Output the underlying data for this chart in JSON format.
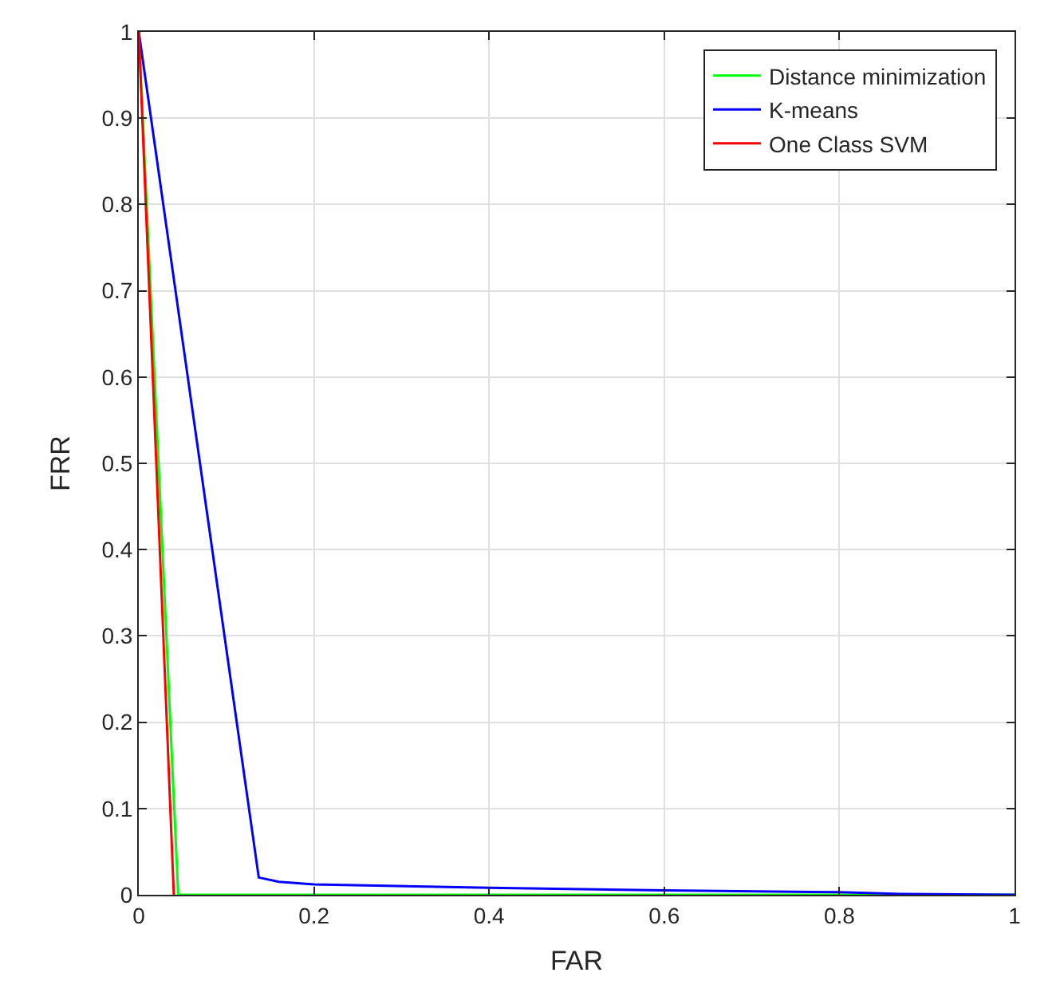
{
  "chart_data": {
    "type": "line",
    "xlabel": "FAR",
    "ylabel": "FRR",
    "xlim": [
      0,
      1
    ],
    "xticks": [
      0,
      0.2,
      0.4,
      0.6,
      0.8,
      1
    ],
    "ylim": [
      0,
      1
    ],
    "yticks": [
      0,
      0.1,
      0.2,
      0.3,
      0.4,
      0.5,
      0.6,
      0.7,
      0.8,
      0.9,
      1
    ],
    "grid": true,
    "legend": "top right",
    "marker": "none",
    "line_style": "solid",
    "series": [
      {
        "name": "Distance minimization",
        "color": "#00ff00",
        "x": [
          0,
          0.045,
          1
        ],
        "values": [
          1,
          0,
          0
        ]
      },
      {
        "name": "K-means",
        "color": "#0000ff",
        "x": [
          0,
          0.137,
          0.16,
          0.2,
          0.4,
          0.6,
          0.8,
          0.87,
          1
        ],
        "values": [
          1,
          0.02,
          0.015,
          0.012,
          0.008,
          0.005,
          0.003,
          0.001,
          0
        ]
      },
      {
        "name": "One Class SVM",
        "color": "#ff0000",
        "x": [
          0,
          0.04
        ],
        "values": [
          1,
          0
        ]
      }
    ]
  }
}
